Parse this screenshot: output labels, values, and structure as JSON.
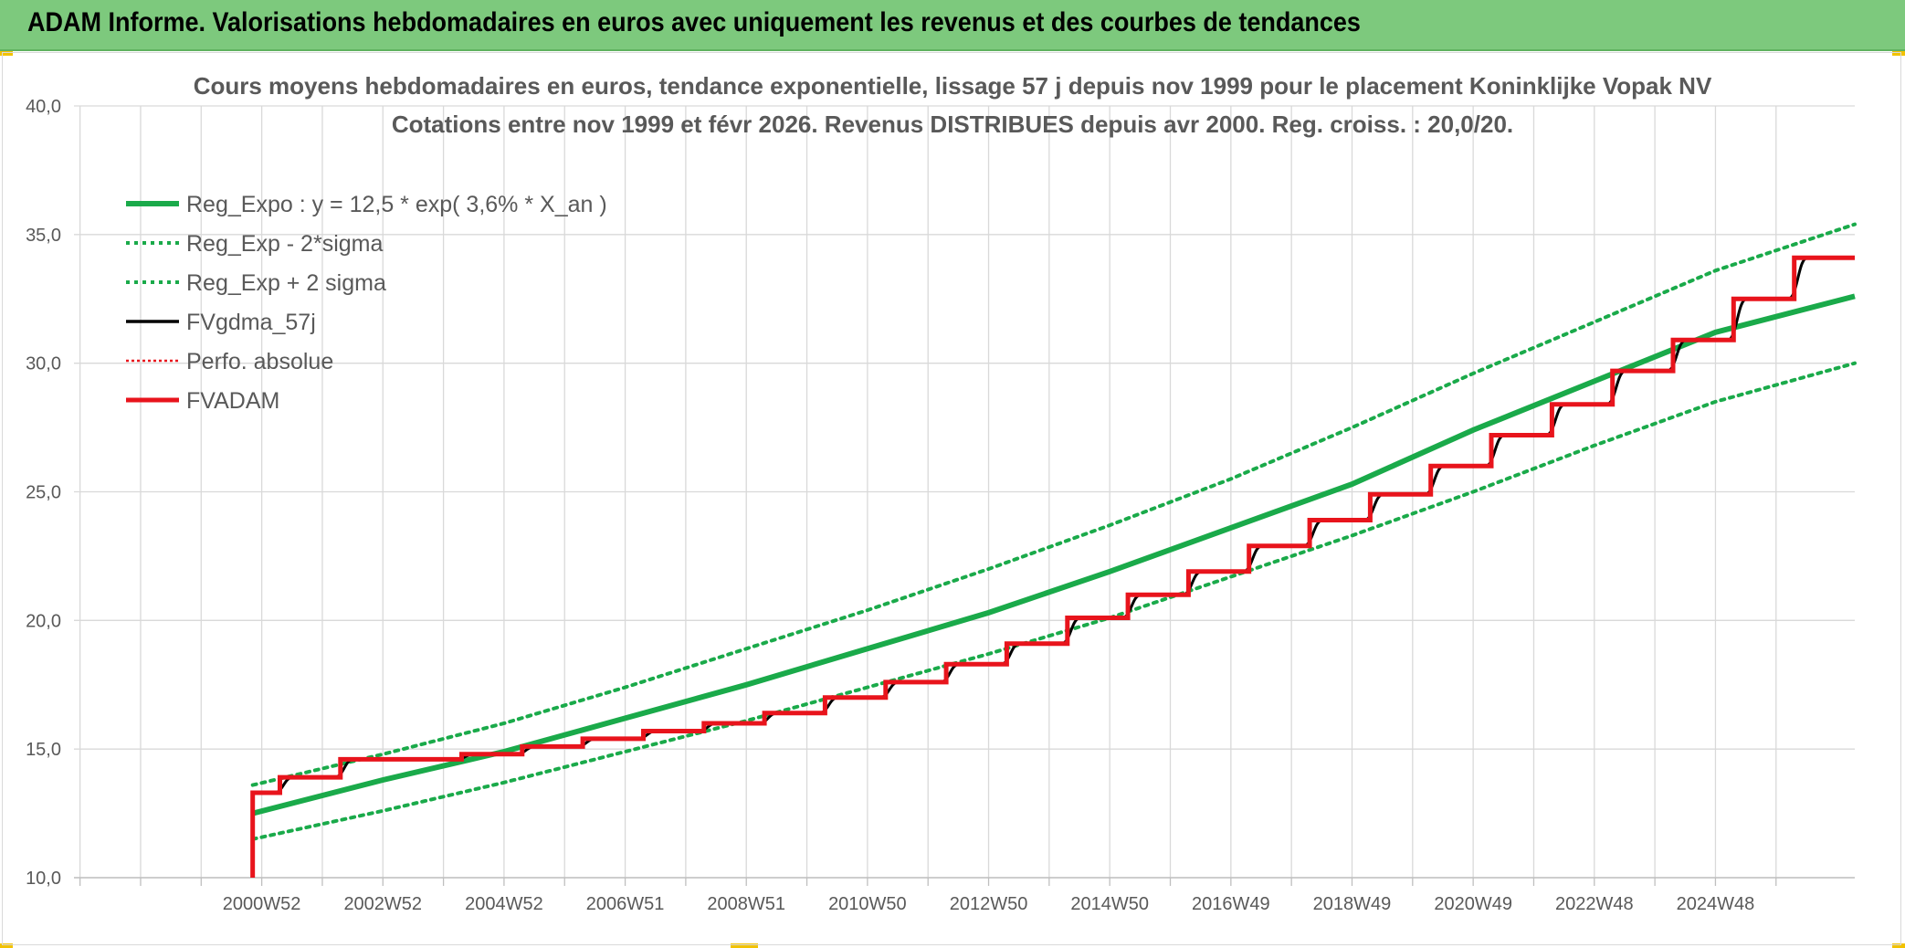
{
  "banner": {
    "title": "ADAM Informe. Valorisations hebdomadaires en euros avec uniquement les revenus et des courbes de tendances"
  },
  "colors": {
    "banner_bg": "#7dc97d",
    "accent": "#f2c200",
    "trend_green": "#1aaa4a",
    "fvgdma_black": "#000000",
    "fvadam_red": "#e8141c",
    "grid": "#d9d9d9",
    "text_grey": "#595959"
  },
  "chart_data": {
    "type": "line",
    "title": "Cours moyens hebdomadaires en euros, tendance exponentielle, lissage 57 j depuis nov 1999 pour le placement Koninklijke Vopak NV",
    "subtitle": "Cotations entre nov 1999 et févr 2026. Revenus DISTRIBUES depuis avr 2000. Reg. croiss. : 20,0/20.",
    "xlabel": "",
    "ylabel": "",
    "x_range_years": [
      1996.9,
      2026.3
    ],
    "ylim": [
      10,
      40
    ],
    "y_ticks": [
      10,
      15,
      20,
      25,
      30,
      35,
      40
    ],
    "y_tick_labels": [
      "10,0",
      "15,0",
      "20,0",
      "25,0",
      "30,0",
      "35,0",
      "40,0"
    ],
    "x_ticks": [
      {
        "year": 2000.0,
        "label": "2000W52"
      },
      {
        "year": 2002.0,
        "label": "2002W52"
      },
      {
        "year": 2004.0,
        "label": "2004W52"
      },
      {
        "year": 2006.0,
        "label": "2006W51"
      },
      {
        "year": 2008.0,
        "label": "2008W51"
      },
      {
        "year": 2010.0,
        "label": "2010W50"
      },
      {
        "year": 2012.0,
        "label": "2012W50"
      },
      {
        "year": 2014.0,
        "label": "2014W50"
      },
      {
        "year": 2016.0,
        "label": "2016W49"
      },
      {
        "year": 2018.0,
        "label": "2018W49"
      },
      {
        "year": 2020.0,
        "label": "2020W49"
      },
      {
        "year": 2022.0,
        "label": "2022W48"
      },
      {
        "year": 2024.0,
        "label": "2024W48"
      }
    ],
    "x_minor_ticks": [
      1997.0,
      1998.0,
      1999.0,
      2001.0,
      2003.0,
      2005.0,
      2007.0,
      2009.0,
      2011.0,
      2013.0,
      2015.0,
      2017.0,
      2019.0,
      2021.0,
      2023.0,
      2025.0
    ],
    "grid": true,
    "legend_position": "top-left",
    "series": [
      {
        "key": "reg_expo",
        "name": "Reg_Expo : y = 12,5 * exp( 3,6% *  X_an )",
        "style": "solid-thick",
        "color": "#1aaa4a",
        "x": [
          1999.85,
          2002,
          2004,
          2006,
          2008,
          2010,
          2012,
          2014,
          2016,
          2018,
          2020,
          2022,
          2024,
          2026.3
        ],
        "values": [
          12.5,
          13.8,
          14.9,
          16.2,
          17.5,
          18.9,
          20.3,
          21.9,
          23.6,
          25.3,
          27.4,
          29.3,
          31.2,
          32.6
        ]
      },
      {
        "key": "reg_minus",
        "name": "Reg_Exp - 2*sigma",
        "style": "dotted",
        "color": "#1aaa4a",
        "x": [
          1999.85,
          2002,
          2004,
          2006,
          2008,
          2010,
          2012,
          2014,
          2016,
          2018,
          2020,
          2022,
          2024,
          2026.3
        ],
        "values": [
          11.5,
          12.6,
          13.7,
          14.9,
          16.1,
          17.4,
          18.7,
          20.1,
          21.7,
          23.3,
          25.0,
          26.8,
          28.5,
          30.0
        ]
      },
      {
        "key": "reg_plus",
        "name": "Reg_Exp + 2 sigma",
        "style": "dotted",
        "color": "#1aaa4a",
        "x": [
          1999.85,
          2002,
          2004,
          2006,
          2008,
          2010,
          2012,
          2014,
          2016,
          2018,
          2020,
          2022,
          2024,
          2026.3
        ],
        "values": [
          13.6,
          14.8,
          16.0,
          17.4,
          18.9,
          20.4,
          22.0,
          23.7,
          25.5,
          27.5,
          29.6,
          31.6,
          33.6,
          35.4
        ]
      },
      {
        "key": "fvgdma",
        "name": "FVgdma_57j",
        "style": "solid",
        "color": "#000000"
      },
      {
        "key": "perfo",
        "name": "Perfo. absolue",
        "style": "dotted-thin",
        "color": "#e8141c"
      },
      {
        "key": "fvadam",
        "name": "FVADAM",
        "style": "solid-step",
        "color": "#e8141c",
        "start": {
          "x": 1999.85,
          "y": 10.0
        },
        "steps": [
          {
            "x": 1999.85,
            "y": 13.3
          },
          {
            "x": 2000.3,
            "y": 13.9
          },
          {
            "x": 2001.3,
            "y": 14.6
          },
          {
            "x": 2003.3,
            "y": 14.8
          },
          {
            "x": 2004.3,
            "y": 15.1
          },
          {
            "x": 2005.3,
            "y": 15.4
          },
          {
            "x": 2006.3,
            "y": 15.7
          },
          {
            "x": 2007.3,
            "y": 16.0
          },
          {
            "x": 2008.3,
            "y": 16.4
          },
          {
            "x": 2009.3,
            "y": 17.0
          },
          {
            "x": 2010.3,
            "y": 17.6
          },
          {
            "x": 2011.3,
            "y": 18.3
          },
          {
            "x": 2012.3,
            "y": 19.1
          },
          {
            "x": 2013.3,
            "y": 20.1
          },
          {
            "x": 2014.3,
            "y": 21.0
          },
          {
            "x": 2015.3,
            "y": 21.9
          },
          {
            "x": 2016.3,
            "y": 22.9
          },
          {
            "x": 2017.3,
            "y": 23.9
          },
          {
            "x": 2018.3,
            "y": 24.9
          },
          {
            "x": 2019.3,
            "y": 26.0
          },
          {
            "x": 2020.3,
            "y": 27.2
          },
          {
            "x": 2021.3,
            "y": 28.4
          },
          {
            "x": 2022.3,
            "y": 29.7
          },
          {
            "x": 2023.3,
            "y": 30.9
          },
          {
            "x": 2024.3,
            "y": 32.5
          },
          {
            "x": 2025.3,
            "y": 34.1
          }
        ],
        "end_x": 2026.3
      }
    ]
  }
}
